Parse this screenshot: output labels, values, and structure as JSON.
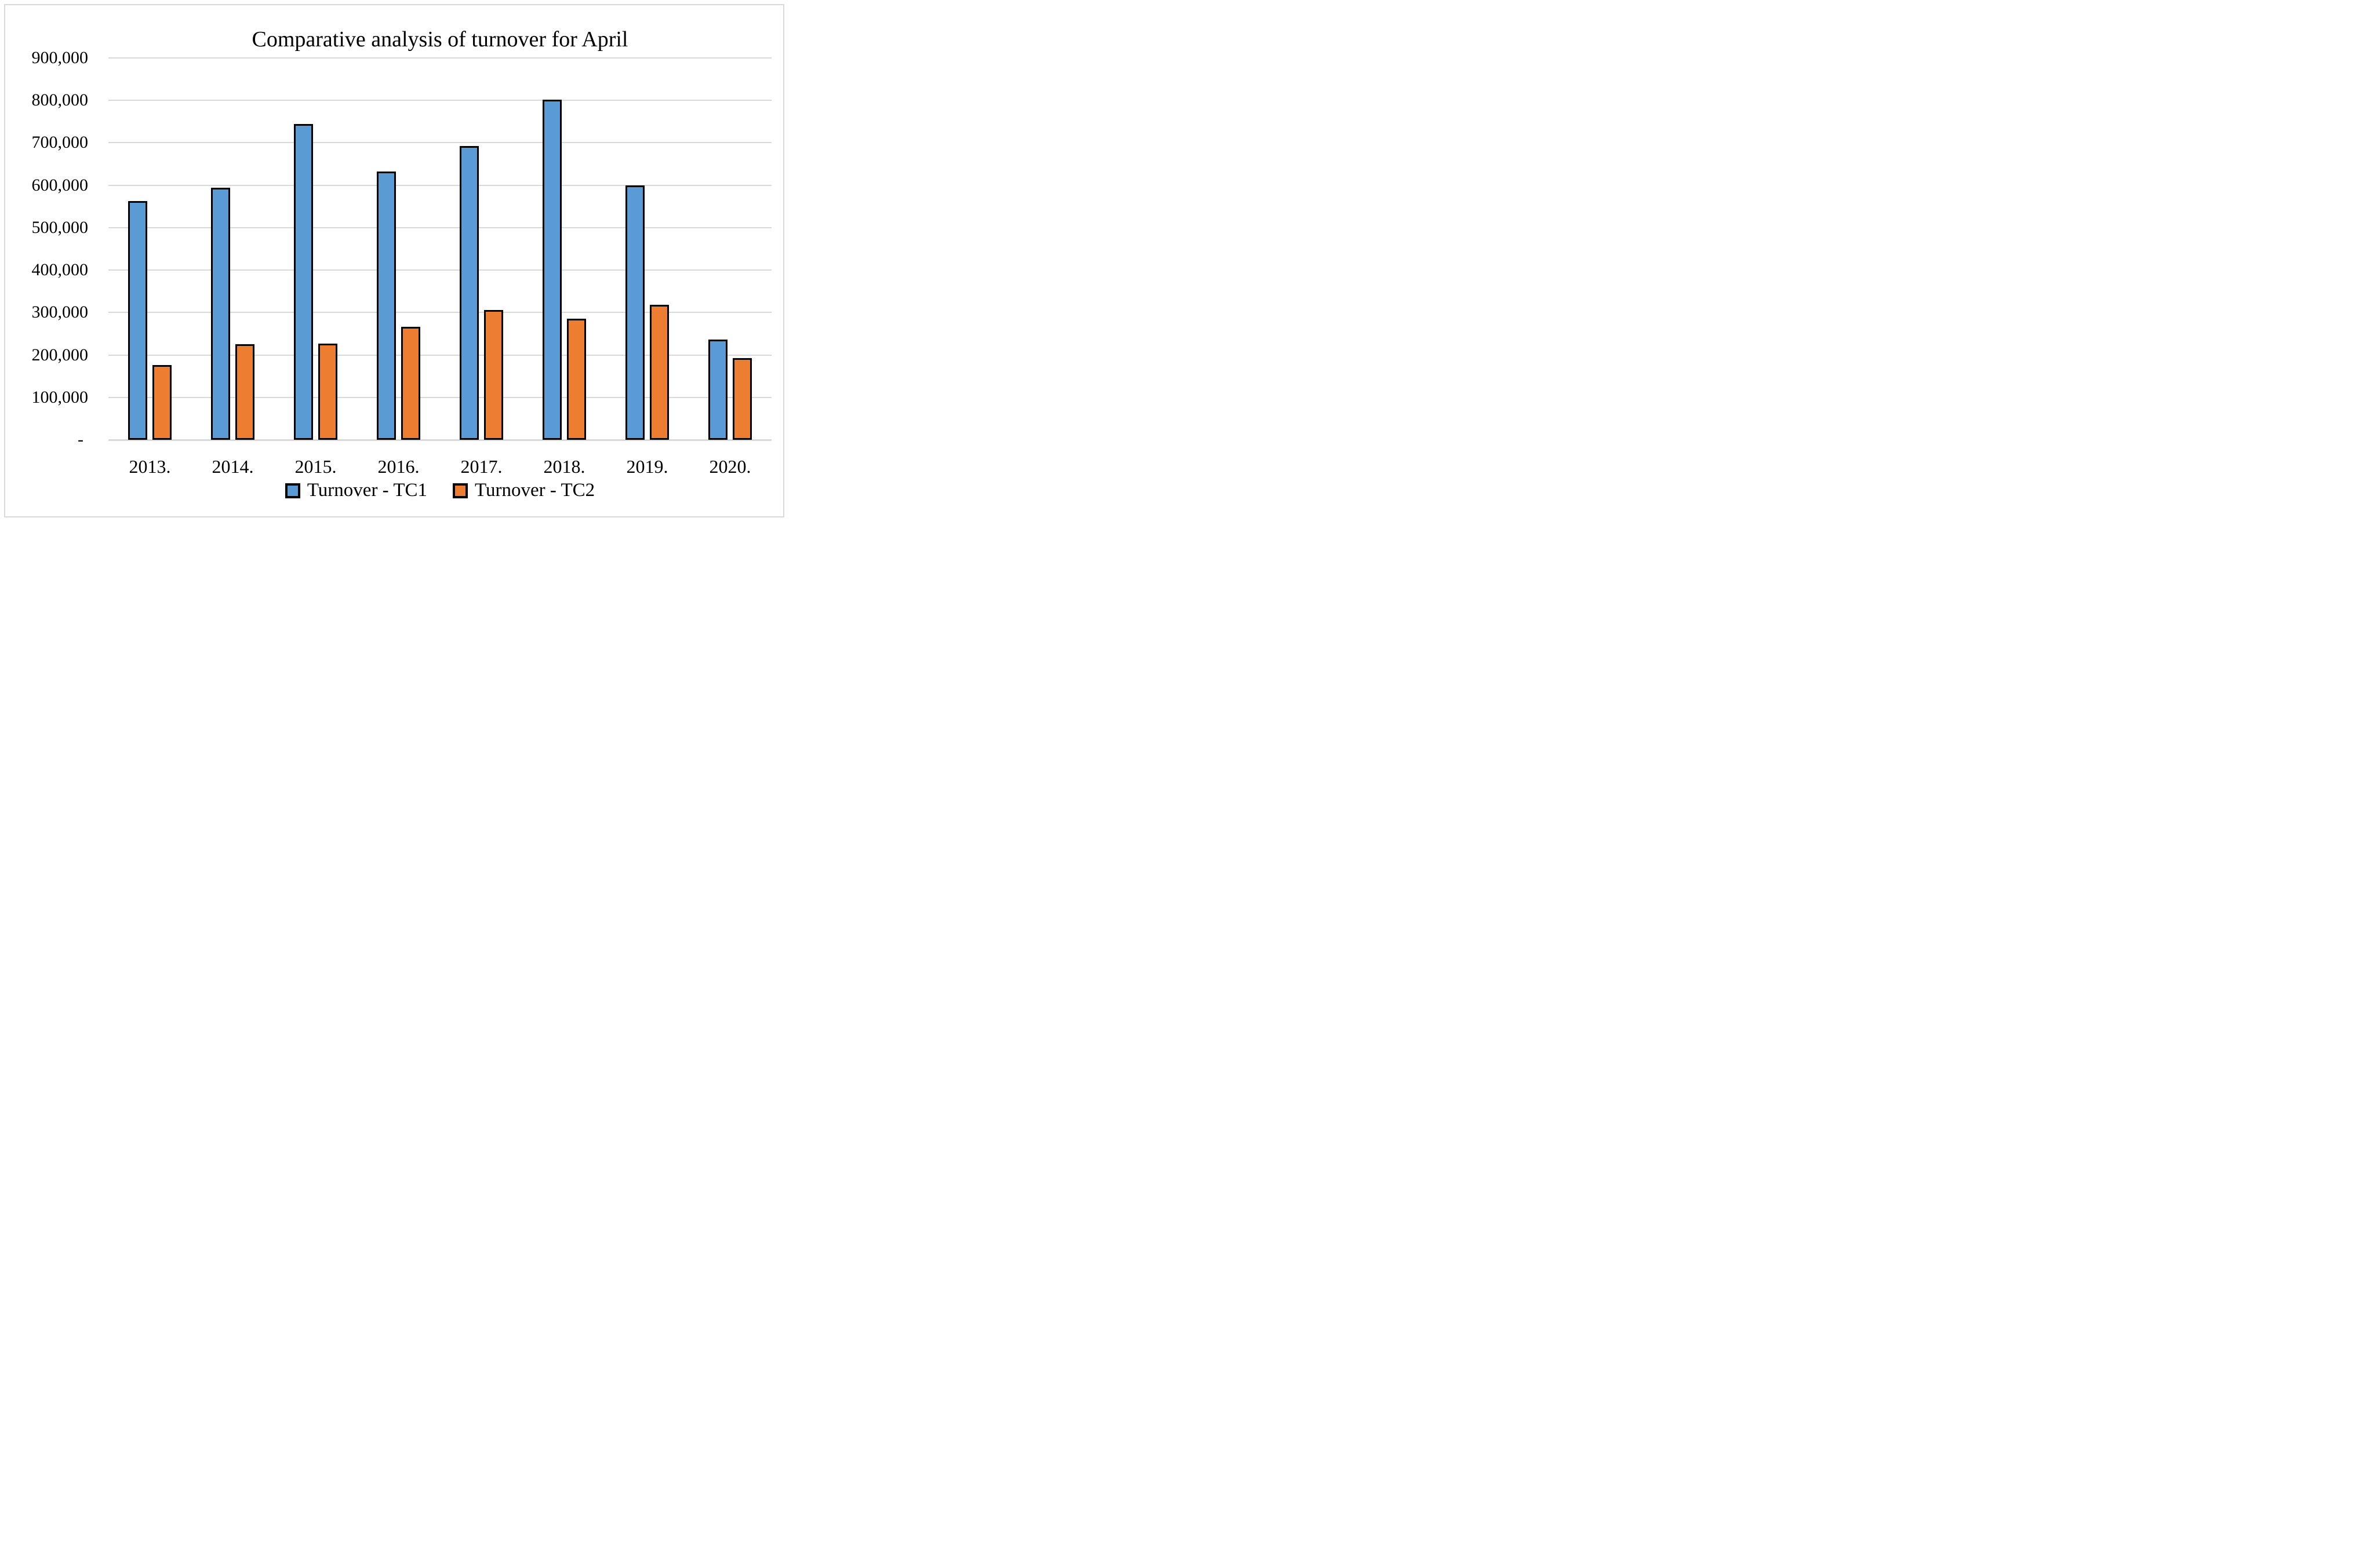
{
  "title": "Comparative analysis of turnover for April",
  "colors": {
    "series_tc1": "#5B9BD5",
    "series_tc2": "#ED7D31",
    "bar_border": "#000000",
    "gridline": "#D9D9D9",
    "canvas_frame": "#D9D9D9",
    "text": "#000000",
    "background": "#FFFFFF"
  },
  "chart_data": {
    "type": "bar",
    "title": "Comparative analysis of turnover for April",
    "xlabel": "",
    "ylabel": "",
    "categories": [
      "2013.",
      "2014.",
      "2015.",
      "2016.",
      "2017.",
      "2018.",
      "2019.",
      "2020."
    ],
    "series": [
      {
        "name": "Turnover - TC1",
        "color": "#5B9BD5",
        "values": [
          563000,
          594000,
          745000,
          633000,
          693000,
          802000,
          600000,
          236000
        ]
      },
      {
        "name": "Turnover - TC2",
        "color": "#ED7D31",
        "values": [
          176000,
          225000,
          227000,
          266000,
          306000,
          285000,
          318000,
          193000
        ]
      }
    ],
    "ylim": [
      0,
      900000
    ],
    "ytick_interval": 100000,
    "yticks": [
      {
        "value": 900000,
        "label": "900,000"
      },
      {
        "value": 800000,
        "label": "800,000"
      },
      {
        "value": 700000,
        "label": "700,000"
      },
      {
        "value": 600000,
        "label": "600,000"
      },
      {
        "value": 500000,
        "label": "500,000"
      },
      {
        "value": 400000,
        "label": "400,000"
      },
      {
        "value": 300000,
        "label": "300,000"
      },
      {
        "value": 200000,
        "label": "200,000"
      },
      {
        "value": 100000,
        "label": "100,000"
      },
      {
        "value": 0,
        "label": "-"
      }
    ],
    "grid": "horizontal",
    "legend_position": "bottom-center"
  }
}
